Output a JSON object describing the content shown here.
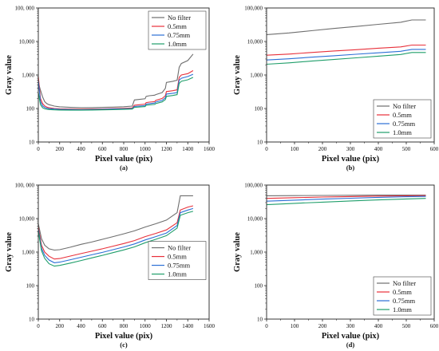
{
  "chart_data": [
    {
      "panel": "(a)",
      "type": "line",
      "xlabel": "Pixel value (pix)",
      "ylabel": "Gray value",
      "xlim": [
        0,
        1600
      ],
      "ylim": [
        10,
        100000
      ],
      "yscale": "log",
      "xticks": [
        "0",
        "200",
        "400",
        "600",
        "800",
        "1000",
        "1200",
        "1400",
        "1600"
      ],
      "yticks": [
        "10",
        "100",
        "1,000",
        "10,000",
        "100, 000"
      ],
      "legend_position": "top-right",
      "series": [
        {
          "name": "No filter",
          "color": "#6e6e6e",
          "x": [
            0,
            20,
            40,
            60,
            80,
            100,
            150,
            200,
            300,
            400,
            500,
            600,
            700,
            800,
            880,
            900,
            1000,
            1010,
            1040,
            1090,
            1100,
            1160,
            1190,
            1200,
            1260,
            1300,
            1320,
            1340,
            1400,
            1450
          ],
          "y": [
            600,
            350,
            220,
            160,
            140,
            130,
            118,
            112,
            108,
            105,
            106,
            108,
            110,
            113,
            118,
            180,
            195,
            230,
            240,
            250,
            260,
            300,
            400,
            600,
            650,
            700,
            1700,
            2200,
            2700,
            4200
          ]
        },
        {
          "name": "0.5mm",
          "color": "#e8303a",
          "x": [
            0,
            20,
            40,
            60,
            80,
            100,
            150,
            200,
            300,
            400,
            500,
            600,
            700,
            800,
            880,
            900,
            1000,
            1010,
            1040,
            1090,
            1100,
            1160,
            1190,
            1200,
            1260,
            1300,
            1320,
            1340,
            1400,
            1450
          ],
          "y": [
            900,
            200,
            140,
            120,
            110,
            105,
            100,
            98,
            96,
            95,
            96,
            97,
            99,
            101,
            104,
            125,
            135,
            150,
            155,
            160,
            175,
            200,
            240,
            320,
            340,
            360,
            850,
            1000,
            1100,
            1350
          ]
        },
        {
          "name": "0.75mm",
          "color": "#2b6fd6",
          "x": [
            0,
            20,
            40,
            60,
            80,
            100,
            150,
            200,
            300,
            400,
            500,
            600,
            700,
            800,
            880,
            900,
            1000,
            1010,
            1040,
            1090,
            1100,
            1160,
            1190,
            1200,
            1260,
            1300,
            1320,
            1340,
            1400,
            1450
          ],
          "y": [
            700,
            160,
            120,
            108,
            102,
            99,
            96,
            94,
            93,
            92,
            93,
            94,
            96,
            98,
            100,
            115,
            122,
            135,
            140,
            145,
            155,
            175,
            210,
            270,
            285,
            300,
            700,
            800,
            900,
            1050
          ]
        },
        {
          "name": "1.0mm",
          "color": "#1f9e6a",
          "x": [
            0,
            20,
            40,
            60,
            80,
            100,
            150,
            200,
            300,
            400,
            500,
            600,
            700,
            800,
            880,
            900,
            1000,
            1010,
            1040,
            1090,
            1100,
            1160,
            1190,
            1200,
            1260,
            1300,
            1320,
            1340,
            1400,
            1450
          ],
          "y": [
            300,
            130,
            105,
            98,
            95,
            93,
            91,
            90,
            89,
            89,
            90,
            91,
            92,
            94,
            96,
            108,
            114,
            125,
            128,
            132,
            140,
            158,
            185,
            230,
            245,
            260,
            560,
            650,
            720,
            850
          ]
        }
      ]
    },
    {
      "panel": "(b)",
      "type": "line",
      "xlabel": "Pixel value (pix)",
      "ylabel": "Gray value",
      "xlim": [
        0,
        600
      ],
      "ylim": [
        10,
        100000
      ],
      "yscale": "log",
      "xticks": [
        "0",
        "100",
        "200",
        "300",
        "400",
        "500",
        "600"
      ],
      "yticks": [
        "10",
        "100",
        "1,000",
        "10,000",
        "100,000"
      ],
      "legend_position": "bottom-right",
      "series": [
        {
          "name": "No filter",
          "color": "#6e6e6e",
          "x": [
            0,
            80,
            160,
            240,
            320,
            400,
            480,
            520,
            570
          ],
          "y": [
            16000,
            18000,
            21000,
            24500,
            28000,
            32500,
            37500,
            44000,
            44000
          ]
        },
        {
          "name": "0.5mm",
          "color": "#e8303a",
          "x": [
            0,
            80,
            160,
            240,
            320,
            400,
            480,
            520,
            570
          ],
          "y": [
            3900,
            4200,
            4700,
            5200,
            5700,
            6300,
            6900,
            7800,
            7800
          ]
        },
        {
          "name": "0.75mm",
          "color": "#2b6fd6",
          "x": [
            0,
            80,
            160,
            240,
            320,
            400,
            480,
            520,
            570
          ],
          "y": [
            2800,
            3050,
            3400,
            3750,
            4150,
            4600,
            5100,
            5800,
            5800
          ]
        },
        {
          "name": "1.0mm",
          "color": "#1f9e6a",
          "x": [
            0,
            80,
            160,
            240,
            320,
            400,
            480,
            520,
            570
          ],
          "y": [
            2100,
            2300,
            2600,
            2900,
            3250,
            3650,
            4100,
            4700,
            4700
          ]
        }
      ]
    },
    {
      "panel": "(c)",
      "type": "line",
      "xlabel": "Pixel value (pix)",
      "ylabel": "Gray value",
      "xlim": [
        0,
        1600
      ],
      "ylim": [
        10,
        100000
      ],
      "yscale": "log",
      "xticks": [
        "0",
        "200",
        "400",
        "600",
        "800",
        "1000",
        "1200",
        "1400",
        "1600"
      ],
      "yticks": [
        "10",
        "100",
        "1,000",
        "10,000",
        "100, 000"
      ],
      "legend_position": "right",
      "series": [
        {
          "name": "No filter",
          "color": "#6e6e6e",
          "x": [
            0,
            30,
            60,
            100,
            150,
            200,
            300,
            400,
            500,
            600,
            700,
            800,
            900,
            1000,
            1100,
            1200,
            1300,
            1330,
            1400,
            1450
          ],
          "y": [
            7000,
            2500,
            1600,
            1250,
            1150,
            1180,
            1400,
            1700,
            2000,
            2400,
            2900,
            3500,
            4300,
            5600,
            7000,
            9000,
            15000,
            48000,
            48000,
            48000
          ]
        },
        {
          "name": "0.5mm",
          "color": "#e8303a",
          "x": [
            0,
            30,
            60,
            100,
            150,
            200,
            300,
            400,
            500,
            600,
            700,
            800,
            900,
            1000,
            1100,
            1200,
            1300,
            1330,
            1400,
            1450
          ],
          "y": [
            5500,
            1600,
            1000,
            750,
            620,
            640,
            760,
            900,
            1060,
            1250,
            1500,
            1800,
            2200,
            2900,
            3600,
            4600,
            7500,
            18000,
            22000,
            24000
          ]
        },
        {
          "name": "0.75mm",
          "color": "#2b6fd6",
          "x": [
            0,
            30,
            60,
            100,
            150,
            200,
            300,
            400,
            500,
            600,
            700,
            800,
            900,
            1000,
            1100,
            1200,
            1300,
            1330,
            1400,
            1450
          ],
          "y": [
            4800,
            1300,
            800,
            580,
            480,
            500,
            590,
            700,
            830,
            980,
            1180,
            1420,
            1750,
            2300,
            2900,
            3700,
            6200,
            15000,
            18000,
            20000
          ]
        },
        {
          "name": "1.0mm",
          "color": "#1f9e6a",
          "x": [
            0,
            30,
            60,
            100,
            150,
            200,
            300,
            400,
            500,
            600,
            700,
            800,
            900,
            1000,
            1100,
            1200,
            1300,
            1330,
            1400,
            1450
          ],
          "y": [
            4200,
            1100,
            650,
            450,
            380,
            400,
            470,
            560,
            670,
            800,
            960,
            1160,
            1430,
            1900,
            2400,
            3100,
            5200,
            12500,
            15000,
            16500
          ]
        }
      ]
    },
    {
      "panel": "(d)",
      "type": "line",
      "xlabel": "Pixel value (pix)",
      "ylabel": "Gray value",
      "xlim": [
        0,
        600
      ],
      "ylim": [
        10,
        100000
      ],
      "yscale": "log",
      "xticks": [
        "0",
        "100",
        "200",
        "300",
        "400",
        "500",
        "600"
      ],
      "yticks": [
        "10",
        "100",
        "1,000",
        "10,000",
        "100,000"
      ],
      "legend_position": "bottom-right",
      "series": [
        {
          "name": "No filter",
          "color": "#6e6e6e",
          "x": [
            0,
            100,
            200,
            300,
            400,
            500,
            570
          ],
          "y": [
            48000,
            48500,
            49000,
            49500,
            50000,
            50000,
            50000
          ]
        },
        {
          "name": "0.5mm",
          "color": "#e8303a",
          "x": [
            0,
            100,
            200,
            300,
            400,
            500,
            570
          ],
          "y": [
            40000,
            42000,
            44000,
            45500,
            47000,
            48000,
            48500
          ]
        },
        {
          "name": "0.75mm",
          "color": "#2b6fd6",
          "x": [
            0,
            100,
            200,
            300,
            400,
            500,
            570
          ],
          "y": [
            33000,
            35500,
            38000,
            40500,
            43000,
            45000,
            46000
          ]
        },
        {
          "name": "1.0mm",
          "color": "#1f9e6a",
          "x": [
            0,
            100,
            200,
            300,
            400,
            500,
            570
          ],
          "y": [
            26000,
            28500,
            31000,
            33500,
            36000,
            38500,
            40000
          ]
        }
      ]
    }
  ]
}
